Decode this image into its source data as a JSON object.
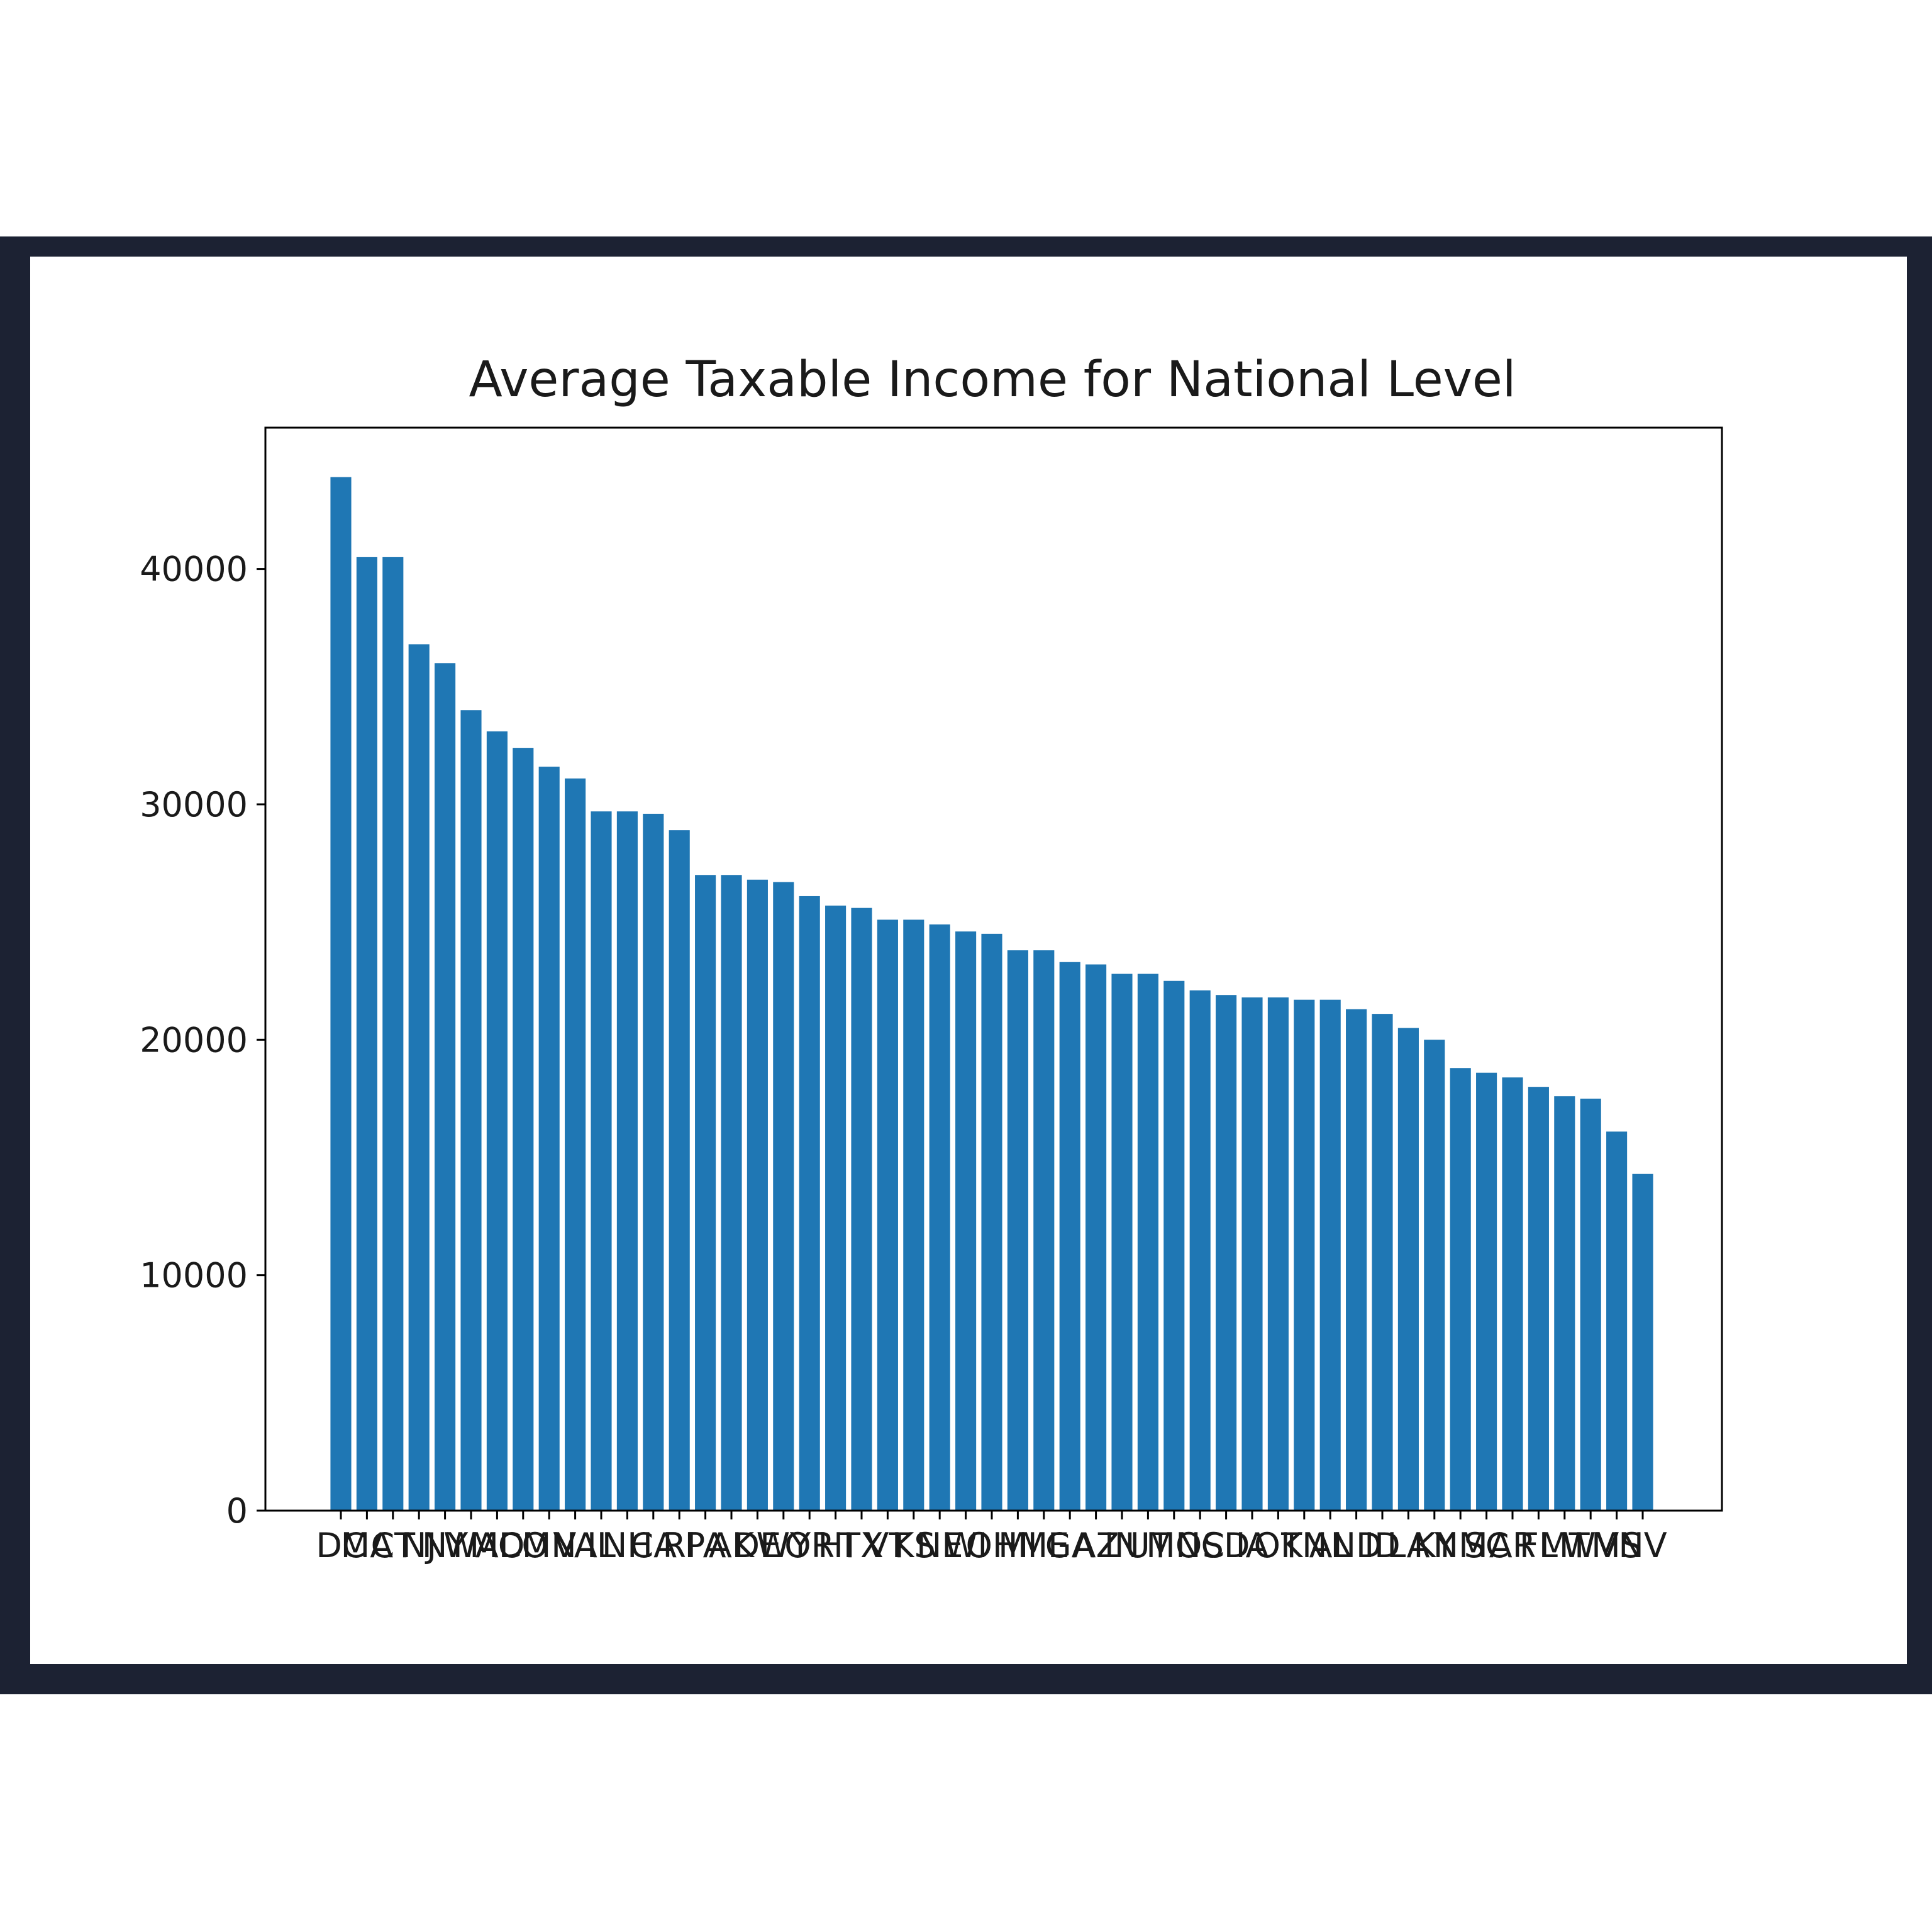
{
  "colors": {
    "bar": "#1f77b4",
    "frame": "#1c2233",
    "axis": "#000000"
  },
  "chart_data": {
    "type": "bar",
    "title": "Average Taxable Income for National Level",
    "xlabel": "",
    "ylabel": "",
    "ylim": [
      0,
      46000
    ],
    "yticks": [
      0,
      10000,
      20000,
      30000,
      40000
    ],
    "grid": false,
    "categories": [
      "DC",
      "MA",
      "CT",
      "NJ",
      "NY",
      "WA",
      "MD",
      "CO",
      "MN",
      "VA",
      "IL",
      "NH",
      "CA",
      "RI",
      "PA",
      "AK",
      "DE",
      "WY",
      "OR",
      "HI",
      "TX",
      "VT",
      "KS",
      "NE",
      "WI",
      "OH",
      "MI",
      "ME",
      "GA",
      "AZ",
      "IN",
      "UT",
      "MO",
      "NC",
      "SD",
      "IA",
      "OK",
      "TN",
      "AL",
      "ND",
      "ID",
      "LA",
      "KY",
      "NM",
      "SC",
      "AR",
      "FL",
      "MT",
      "WV",
      "MS",
      "NV"
    ],
    "values": [
      43900,
      40500,
      40500,
      36800,
      36000,
      34000,
      33100,
      32400,
      31600,
      31100,
      29700,
      29700,
      29600,
      28900,
      27000,
      27000,
      26800,
      26700,
      26100,
      25700,
      25600,
      25100,
      25100,
      24900,
      24600,
      24500,
      23800,
      23800,
      23300,
      23200,
      22800,
      22800,
      22500,
      22100,
      21900,
      21800,
      21800,
      21700,
      21700,
      21300,
      21100,
      20500,
      20000,
      18800,
      18600,
      18400,
      18000,
      17600,
      17500,
      16100,
      14300
    ]
  }
}
